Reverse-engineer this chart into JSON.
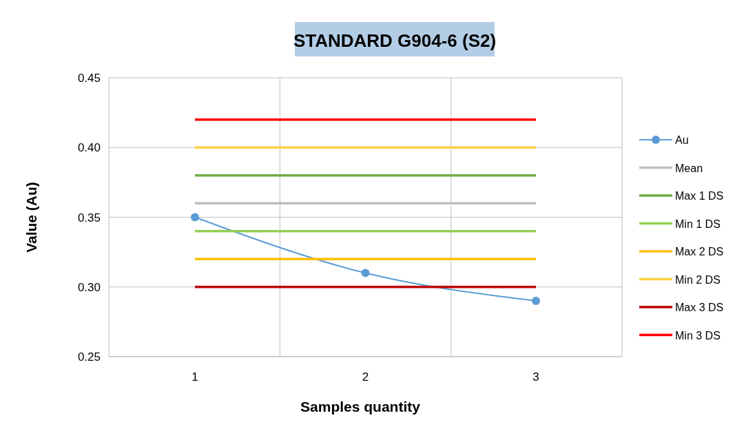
{
  "chart_data": {
    "type": "line",
    "title": "STANDARD  G904-6 (S2)",
    "xlabel": "Samples quantity",
    "ylabel": "Value (Au)",
    "categories": [
      "1",
      "2",
      "3"
    ],
    "ylim": [
      0.25,
      0.45
    ],
    "yticks": [
      {
        "value": 0.25,
        "label": "0.25"
      },
      {
        "value": 0.3,
        "label": "0.30"
      },
      {
        "value": 0.35,
        "label": "0.35"
      },
      {
        "value": 0.4,
        "label": "0.40"
      },
      {
        "value": 0.45,
        "label": "0.45"
      }
    ],
    "grid": true,
    "legend": "right",
    "series": [
      {
        "name": "Au",
        "color": "#5b9bd5",
        "values": [
          0.35,
          0.31,
          0.29
        ],
        "marker": "circle"
      },
      {
        "name": "Mean",
        "color": "#bfbfbf",
        "values": [
          0.36,
          0.36,
          0.36
        ],
        "marker": "none"
      },
      {
        "name": "Max 1 DS",
        "color": "#70ad47",
        "values": [
          0.38,
          0.38,
          0.38
        ],
        "marker": "none"
      },
      {
        "name": "Min 1 DS",
        "color": "#92d050",
        "values": [
          0.34,
          0.34,
          0.34
        ],
        "marker": "none"
      },
      {
        "name": "Max 2 DS",
        "color": "#ffc000",
        "values": [
          0.32,
          0.32,
          0.32
        ],
        "marker": "none"
      },
      {
        "name": "Min 2 DS",
        "color": "#ffd040",
        "values": [
          0.4,
          0.4,
          0.4
        ],
        "marker": "none"
      },
      {
        "name": "Max 3 DS",
        "color": "#c00000",
        "values": [
          0.3,
          0.3,
          0.3
        ],
        "marker": "none"
      },
      {
        "name": "Min 3 DS",
        "color": "#ff0000",
        "values": [
          0.42,
          0.42,
          0.42
        ],
        "marker": "none"
      }
    ]
  }
}
